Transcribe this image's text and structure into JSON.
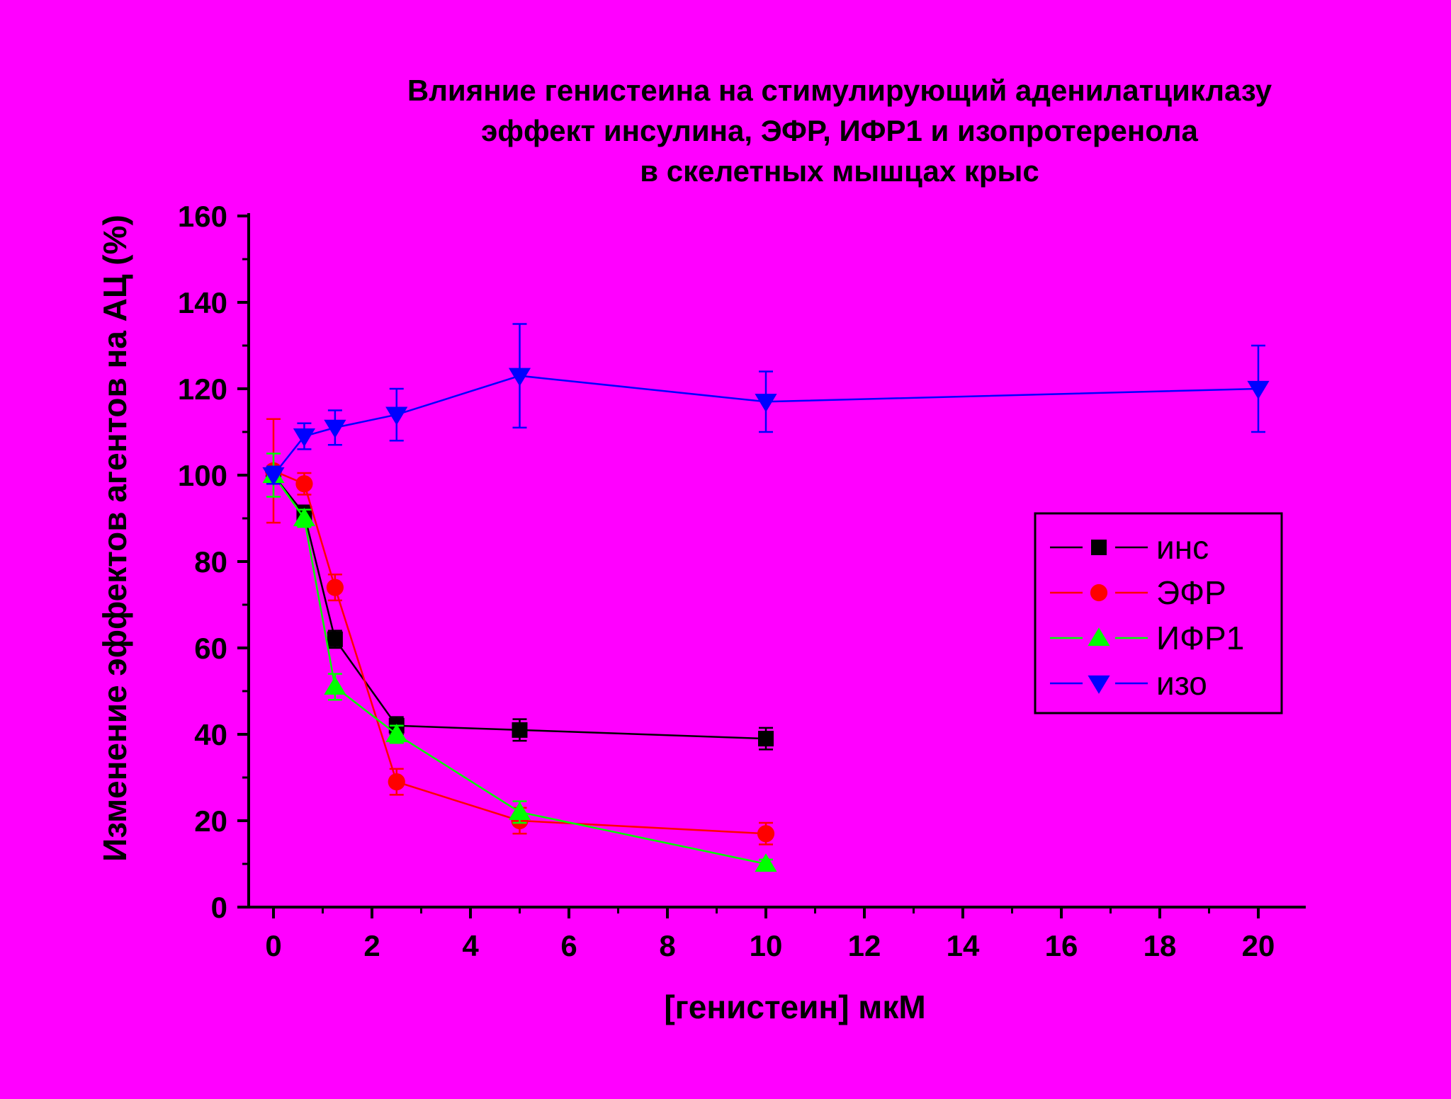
{
  "chart_data": {
    "type": "line",
    "title_lines": [
      "Влияние генистеина на стимулирующий аденилатциклазу",
      "эффект инсулина, ЭФР, ИФР1 и изопротеренола",
      "в скелетных мышцах крыс"
    ],
    "xlabel": "[генистеин] мкМ",
    "ylabel": "Изменение эффектов агентов на АЦ (%)",
    "xlim": [
      -0.5,
      21
    ],
    "ylim": [
      0,
      160
    ],
    "x_ticks": [
      "0",
      "2",
      "4",
      "6",
      "8",
      "10",
      "12",
      "14",
      "16",
      "18",
      "20"
    ],
    "y_ticks": [
      "0",
      "20",
      "40",
      "60",
      "80",
      "100",
      "120",
      "140",
      "160"
    ],
    "grid": false,
    "legend_position": "right",
    "series": [
      {
        "name": "инс",
        "color": "#000000",
        "marker": "square",
        "x": [
          0,
          0.625,
          1.25,
          2.5,
          5,
          10
        ],
        "y": [
          100,
          91,
          62,
          42,
          41,
          39
        ],
        "err": [
          2,
          2,
          2,
          2,
          2.5,
          2.5
        ]
      },
      {
        "name": "ЭФР",
        "color": "#ff0000",
        "marker": "circle",
        "x": [
          0,
          0.625,
          1.25,
          2.5,
          5,
          10
        ],
        "y": [
          101,
          98,
          74,
          29,
          20,
          17
        ],
        "err": [
          12,
          2.5,
          3,
          3,
          3,
          2.5
        ]
      },
      {
        "name": "ИФР1",
        "color": "#00ff00",
        "marker": "triangle-up",
        "x": [
          0,
          0.625,
          1.25,
          2.5,
          5,
          10
        ],
        "y": [
          100,
          90,
          51,
          40,
          22,
          10
        ],
        "err": [
          5,
          2,
          3,
          2,
          2.5,
          1
        ]
      },
      {
        "name": "изо",
        "color": "#0000ff",
        "marker": "triangle-down",
        "x": [
          0,
          0.625,
          1.25,
          2.5,
          5,
          10,
          20
        ],
        "y": [
          100,
          109,
          111,
          114,
          123,
          117,
          120
        ],
        "err": [
          2,
          3,
          4,
          6,
          12,
          7,
          10
        ]
      }
    ]
  }
}
